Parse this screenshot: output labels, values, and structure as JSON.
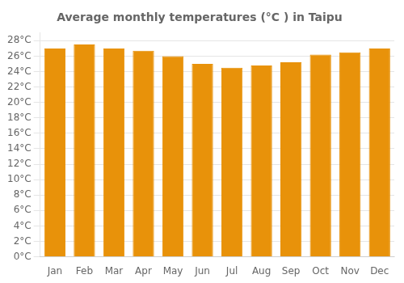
{
  "chart_data": {
    "type": "bar",
    "title": "Average monthly temperatures (°C ) in Taipu",
    "categories": [
      "Jan",
      "Feb",
      "Mar",
      "Apr",
      "May",
      "Jun",
      "Jul",
      "Aug",
      "Sep",
      "Oct",
      "Nov",
      "Dec"
    ],
    "values": [
      27.0,
      27.5,
      27.0,
      26.7,
      26.0,
      25.0,
      24.5,
      24.8,
      25.2,
      26.2,
      26.5,
      27.0
    ],
    "color": "#E8920A",
    "ylim": [
      0,
      29
    ],
    "yticks": [
      {
        "value": 0,
        "label": "0°C"
      },
      {
        "value": 2,
        "label": "2°C"
      },
      {
        "value": 4,
        "label": "4°C"
      },
      {
        "value": 6,
        "label": "6°C"
      },
      {
        "value": 8,
        "label": "8°C"
      },
      {
        "value": 10,
        "label": "10°C"
      },
      {
        "value": 12,
        "label": "12°C"
      },
      {
        "value": 14,
        "label": "14°C"
      },
      {
        "value": 16,
        "label": "16°C"
      },
      {
        "value": 18,
        "label": "18°C"
      },
      {
        "value": 20,
        "label": "20°C"
      },
      {
        "value": 22,
        "label": "22°C"
      },
      {
        "value": 24,
        "label": "24°C"
      },
      {
        "value": 26,
        "label": "26°C"
      },
      {
        "value": 28,
        "label": "28°C"
      }
    ],
    "grid": true
  }
}
